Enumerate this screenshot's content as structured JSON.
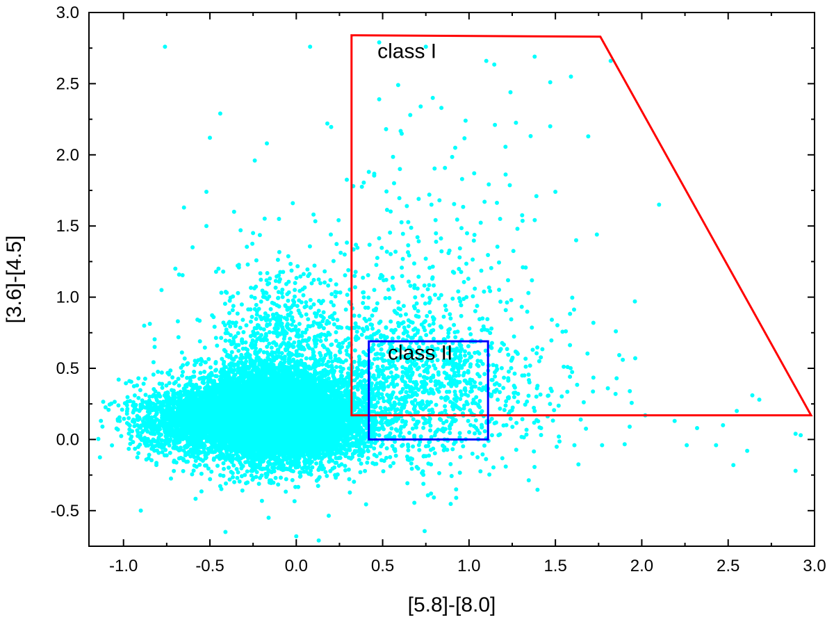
{
  "chart_data": {
    "type": "scatter",
    "title": "",
    "xlabel": "[5.8]-[8.0]",
    "ylabel": "[3.6]-[4.5]",
    "xlim": [
      -1.2,
      3.0
    ],
    "ylim": [
      -0.75,
      3.0
    ],
    "x_ticks": [
      -1.0,
      -0.5,
      0.0,
      0.5,
      1.0,
      1.5,
      2.0,
      2.5,
      3.0
    ],
    "x_tick_labels": [
      "-1.0",
      "-0.5",
      "0.0",
      "0.5",
      "1.0",
      "1.5",
      "2.0",
      "2.5",
      "3.0"
    ],
    "y_ticks": [
      -0.5,
      0.0,
      0.5,
      1.0,
      1.5,
      2.0,
      2.5,
      3.0
    ],
    "y_tick_labels": [
      "-0.5",
      "0.0",
      "0.5",
      "1.0",
      "1.5",
      "2.0",
      "2.5",
      "3.0"
    ],
    "grid": false,
    "legend": "none",
    "colors": {
      "points": "#00ffff",
      "class_I_region": "#ff0000",
      "class_II_region": "#0000ff",
      "axes": "#000000"
    },
    "series": [
      {
        "points": [
          [
            -0.76,
            2.76
          ],
          [
            0.08,
            2.76
          ],
          [
            0.48,
            2.79
          ],
          [
            0.75,
            2.76
          ],
          [
            1.1,
            2.66
          ],
          [
            1.38,
            2.69
          ],
          [
            1.82,
            2.66
          ],
          [
            -0.44,
            2.29
          ],
          [
            -0.5,
            2.12
          ],
          [
            0.18,
            2.22
          ],
          [
            0.48,
            2.39
          ],
          [
            0.52,
            2.18
          ],
          [
            0.59,
            2.49
          ],
          [
            0.66,
            2.28
          ],
          [
            0.72,
            2.34
          ],
          [
            0.84,
            2.33
          ],
          [
            0.79,
            2.4
          ],
          [
            0.98,
            2.24
          ],
          [
            1.24,
            2.44
          ],
          [
            1.47,
            2.51
          ],
          [
            1.59,
            2.55
          ],
          [
            1.47,
            2.2
          ],
          [
            1.69,
            2.13
          ],
          [
            1.15,
            2.21
          ],
          [
            -0.17,
            2.08
          ],
          [
            -0.24,
            1.96
          ],
          [
            -0.52,
            1.74
          ],
          [
            -0.65,
            1.63
          ],
          [
            0.33,
            1.78
          ],
          [
            0.42,
            1.88
          ],
          [
            0.6,
            1.9
          ],
          [
            0.64,
            1.64
          ],
          [
            0.77,
            1.72
          ],
          [
            0.92,
            2.05
          ],
          [
            0.96,
            1.83
          ],
          [
            1.03,
            1.87
          ],
          [
            1.09,
            1.67
          ],
          [
            1.18,
            1.55
          ],
          [
            1.28,
            1.48
          ],
          [
            1.39,
            1.71
          ],
          [
            1.5,
            1.74
          ],
          [
            1.62,
            1.4
          ],
          [
            1.74,
            1.44
          ],
          [
            2.1,
            1.65
          ],
          [
            1.96,
            0.97
          ],
          [
            1.85,
            0.76
          ],
          [
            1.56,
            0.76
          ],
          [
            1.72,
            0.82
          ],
          [
            1.89,
            0.56
          ],
          [
            2.02,
            0.17
          ],
          [
            2.19,
            0.13
          ],
          [
            2.32,
            0.08
          ],
          [
            2.47,
            0.1
          ],
          [
            2.55,
            0.2
          ],
          [
            2.64,
            0.31
          ],
          [
            2.68,
            0.28
          ],
          [
            2.53,
            -0.18
          ],
          [
            2.61,
            -0.08
          ],
          [
            2.43,
            -0.04
          ],
          [
            2.26,
            -0.04
          ],
          [
            2.89,
            0.04
          ],
          [
            2.89,
            -0.22
          ],
          [
            2.92,
            0.03
          ],
          [
            1.77,
            -0.04
          ],
          [
            1.93,
            0.09
          ],
          [
            1.61,
            -0.04
          ],
          [
            1.52,
            0.02
          ],
          [
            1.38,
            0.2
          ],
          [
            1.23,
            0.29
          ],
          [
            1.32,
            0.45
          ],
          [
            1.15,
            0.34
          ],
          [
            1.02,
            -0.1
          ],
          [
            0.78,
            -0.38
          ],
          [
            -0.9,
            -0.5
          ],
          [
            -0.16,
            -0.55
          ],
          [
            -0.41,
            -0.65
          ],
          [
            0.0,
            -0.68
          ],
          [
            0.13,
            -0.71
          ],
          [
            -0.98,
            0.24
          ],
          [
            -0.97,
            0.15
          ],
          [
            -0.92,
            0.1
          ],
          [
            -0.88,
            0.8
          ],
          [
            -0.82,
            0.65
          ],
          [
            -0.78,
            1.05
          ],
          [
            -0.7,
            1.2
          ],
          [
            -0.6,
            1.35
          ],
          [
            -0.52,
            1.5
          ],
          [
            -0.45,
            1.2
          ],
          [
            -0.36,
            1.6
          ],
          [
            -0.25,
            1.45
          ],
          [
            -0.1,
            1.55
          ],
          [
            -0.02,
            1.66
          ],
          [
            0.1,
            1.58
          ],
          [
            0.2,
            1.44
          ],
          [
            0.28,
            1.3
          ]
        ]
      }
    ],
    "cloud_regions": [
      {
        "x_mean": -0.15,
        "x_sd": 0.18,
        "y_mean": 0.18,
        "y_sd": 0.17,
        "count": 5200
      },
      {
        "x_mean": -0.45,
        "x_sd": 0.22,
        "y_mean": 0.14,
        "y_sd": 0.12,
        "count": 2200
      },
      {
        "x_mean": 0.1,
        "x_sd": 0.2,
        "y_mean": 0.12,
        "y_sd": 0.14,
        "count": 2200
      },
      {
        "x_mean": 0.65,
        "x_sd": 0.32,
        "y_mean": 0.38,
        "y_sd": 0.3,
        "count": 1100
      },
      {
        "x_mean": -0.1,
        "x_sd": 0.22,
        "y_mean": 0.6,
        "y_sd": 0.32,
        "count": 800
      },
      {
        "x_mean": -0.7,
        "x_sd": 0.15,
        "y_mean": 0.12,
        "y_sd": 0.16,
        "count": 400
      },
      {
        "x_mean": 0.75,
        "x_sd": 0.35,
        "y_mean": 1.1,
        "y_sd": 0.5,
        "count": 220
      },
      {
        "x_mean": 1.2,
        "x_sd": 0.35,
        "y_mean": 0.35,
        "y_sd": 0.25,
        "count": 140
      }
    ],
    "regions": [
      {
        "label": "class I",
        "color": "#ff0000",
        "vertices": [
          [
            0.32,
            2.84
          ],
          [
            1.76,
            2.83
          ],
          [
            2.98,
            0.17
          ],
          [
            0.32,
            0.17
          ]
        ],
        "label_anchor": [
          0.47,
          2.68
        ]
      },
      {
        "label": "class II",
        "color": "#0000ff",
        "vertices": [
          [
            0.42,
            0.0
          ],
          [
            1.11,
            0.0
          ],
          [
            1.11,
            0.69
          ],
          [
            0.42,
            0.69
          ]
        ],
        "label_anchor": [
          0.53,
          0.56
        ]
      }
    ]
  }
}
